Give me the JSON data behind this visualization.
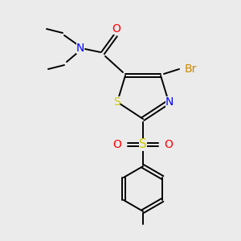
{
  "bg_color": "#ebebeb",
  "atom_colors": {
    "N": "#0000ff",
    "O": "#ff0000",
    "S": "#cccc00",
    "Br": "#cc8800"
  },
  "bond_color": "#000000",
  "figsize": [
    3.0,
    3.0
  ],
  "dpi": 100
}
